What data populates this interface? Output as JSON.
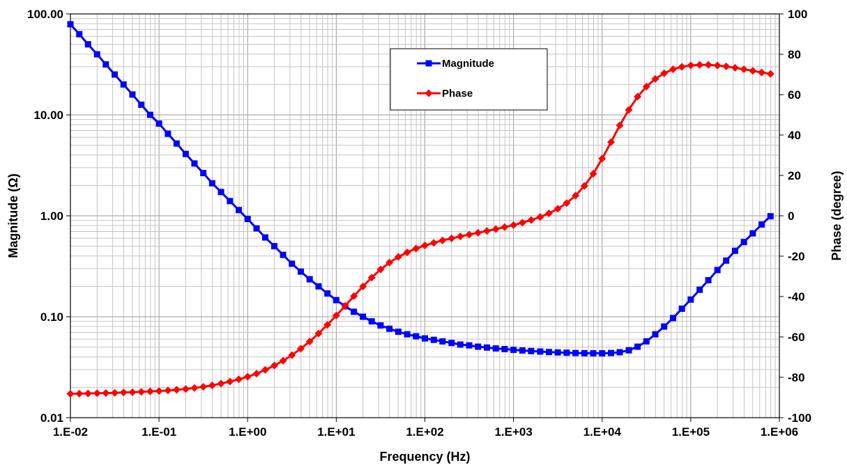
{
  "chart_data": {
    "type": "line",
    "x_scale": "log",
    "xlabel": "Frequency (Hz)",
    "xlim": [
      0.01,
      1000000
    ],
    "x_tick_labels": [
      "1.E-02",
      "1.E-01",
      "1.E+00",
      "1.E+01",
      "1.E+02",
      "1.E+03",
      "1.E+04",
      "1.E+05",
      "1.E+06"
    ],
    "y_left": {
      "label": "Magnitude (Ω)",
      "scale": "log",
      "lim": [
        0.01,
        100
      ],
      "tick_labels": [
        "0.01",
        "0.10",
        "1.00",
        "10.00",
        "100.00"
      ]
    },
    "y_right": {
      "label": "Phase (degree)",
      "scale": "linear",
      "lim": [
        -100,
        100
      ],
      "ticks": [
        -100,
        -80,
        -60,
        -40,
        -20,
        0,
        20,
        40,
        60,
        80,
        100
      ]
    },
    "grid": true,
    "legend_position": "top-center",
    "series": [
      {
        "name": "Magnitude",
        "axis": "left",
        "color": "#0000ff",
        "marker": "square",
        "x": [
          0.01,
          0.0126,
          0.0158,
          0.02,
          0.0251,
          0.0316,
          0.0398,
          0.0501,
          0.0631,
          0.0794,
          0.1,
          0.126,
          0.158,
          0.2,
          0.251,
          0.316,
          0.398,
          0.501,
          0.631,
          0.794,
          1,
          1.26,
          1.58,
          2,
          2.51,
          3.16,
          3.98,
          5.01,
          6.31,
          7.94,
          10,
          12.6,
          15.8,
          20,
          25.1,
          31.6,
          39.8,
          50.1,
          63.1,
          79.4,
          100,
          126,
          158,
          200,
          251,
          316,
          398,
          501,
          631,
          794,
          1000,
          1260,
          1580,
          2000,
          2510,
          3160,
          3980,
          5010,
          6310,
          7940,
          10000,
          12600,
          15800,
          20000,
          25100,
          31600,
          39800,
          50100,
          63100,
          79400,
          100000,
          126000,
          158000,
          200000,
          251000,
          316000,
          398000,
          501000,
          631000,
          794000
        ],
        "values": [
          79,
          63,
          50,
          39.8,
          31.6,
          25.1,
          20,
          15.9,
          12.6,
          10,
          8.2,
          6.5,
          5.2,
          4.1,
          3.3,
          2.65,
          2.1,
          1.72,
          1.4,
          1.14,
          0.93,
          0.75,
          0.61,
          0.5,
          0.41,
          0.335,
          0.28,
          0.235,
          0.2,
          0.17,
          0.146,
          0.127,
          0.112,
          0.1,
          0.09,
          0.082,
          0.076,
          0.071,
          0.067,
          0.064,
          0.061,
          0.059,
          0.057,
          0.055,
          0.053,
          0.052,
          0.0505,
          0.0495,
          0.0485,
          0.0478,
          0.047,
          0.0463,
          0.0457,
          0.0452,
          0.0447,
          0.0443,
          0.044,
          0.0437,
          0.0435,
          0.0434,
          0.0434,
          0.0437,
          0.0445,
          0.0465,
          0.0505,
          0.057,
          0.067,
          0.08,
          0.097,
          0.12,
          0.148,
          0.185,
          0.23,
          0.29,
          0.36,
          0.45,
          0.55,
          0.67,
          0.82,
          0.99
        ]
      },
      {
        "name": "Phase",
        "axis": "right",
        "color": "#ff0000",
        "marker": "diamond",
        "x": [
          0.01,
          0.0126,
          0.0158,
          0.02,
          0.0251,
          0.0316,
          0.0398,
          0.0501,
          0.0631,
          0.0794,
          0.1,
          0.126,
          0.158,
          0.2,
          0.251,
          0.316,
          0.398,
          0.501,
          0.631,
          0.794,
          1,
          1.26,
          1.58,
          2,
          2.51,
          3.16,
          3.98,
          5.01,
          6.31,
          7.94,
          10,
          12.6,
          15.8,
          20,
          25.1,
          31.6,
          39.8,
          50.1,
          63.1,
          79.4,
          100,
          126,
          158,
          200,
          251,
          316,
          398,
          501,
          631,
          794,
          1000,
          1260,
          1580,
          2000,
          2510,
          3160,
          3980,
          5010,
          6310,
          7940,
          10000,
          12600,
          15800,
          20000,
          25100,
          31600,
          39800,
          50100,
          63100,
          79400,
          100000,
          126000,
          158000,
          200000,
          251000,
          316000,
          398000,
          501000,
          631000,
          794000
        ],
        "values": [
          -88.2,
          -88.1,
          -88.0,
          -87.9,
          -87.8,
          -87.7,
          -87.5,
          -87.4,
          -87.2,
          -87.0,
          -86.8,
          -86.5,
          -86.2,
          -85.8,
          -85.3,
          -84.7,
          -84.0,
          -83.1,
          -82.1,
          -81.0,
          -79.7,
          -78.2,
          -76.3,
          -74.2,
          -71.8,
          -69.0,
          -65.8,
          -62.3,
          -58.3,
          -54.0,
          -49.4,
          -44.6,
          -39.8,
          -35.0,
          -30.6,
          -26.6,
          -23.2,
          -20.4,
          -18.1,
          -16.2,
          -14.7,
          -13.4,
          -12.2,
          -11.2,
          -10.2,
          -9.3,
          -8.4,
          -7.5,
          -6.6,
          -5.6,
          -4.6,
          -3.4,
          -2.1,
          -0.6,
          1.2,
          3.5,
          6.3,
          10.0,
          14.8,
          20.8,
          28.3,
          36.5,
          44.8,
          52.5,
          59.0,
          64.0,
          67.8,
          70.6,
          72.6,
          73.8,
          74.5,
          74.8,
          74.8,
          74.5,
          74.0,
          73.3,
          72.6,
          71.8,
          71.0,
          70.3
        ]
      }
    ]
  }
}
